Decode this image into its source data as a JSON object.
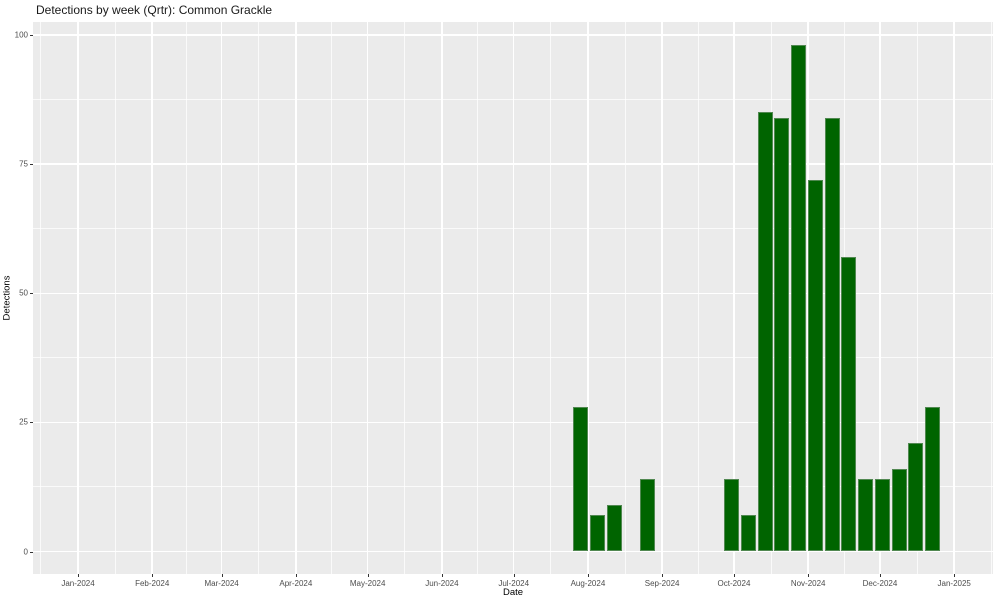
{
  "chart_data": {
    "type": "bar",
    "title": "Detections by week (Qrtr): Common Grackle",
    "xlabel": "Date",
    "ylabel": "Detections",
    "series_name": "Weekly detections",
    "x": [
      "2024-07-29",
      "2024-08-05",
      "2024-08-12",
      "2024-08-26",
      "2024-09-30",
      "2024-10-07",
      "2024-10-14",
      "2024-10-21",
      "2024-10-28",
      "2024-11-04",
      "2024-11-11",
      "2024-11-18",
      "2024-11-25",
      "2024-12-02",
      "2024-12-09",
      "2024-12-16",
      "2024-12-23"
    ],
    "values": [
      28,
      7,
      9,
      14,
      14,
      7,
      85,
      84,
      98,
      72,
      84,
      57,
      14,
      14,
      16,
      21,
      28
    ],
    "x_ticks": [
      {
        "date": "2024-01-01",
        "label": "Jan-2024"
      },
      {
        "date": "2024-02-01",
        "label": "Feb-2024"
      },
      {
        "date": "2024-03-01",
        "label": "Mar-2024"
      },
      {
        "date": "2024-04-01",
        "label": "Apr-2024"
      },
      {
        "date": "2024-05-01",
        "label": "May-2024"
      },
      {
        "date": "2024-06-01",
        "label": "Jun-2024"
      },
      {
        "date": "2024-07-01",
        "label": "Jul-2024"
      },
      {
        "date": "2024-08-01",
        "label": "Aug-2024"
      },
      {
        "date": "2024-09-01",
        "label": "Sep-2024"
      },
      {
        "date": "2024-10-01",
        "label": "Oct-2024"
      },
      {
        "date": "2024-11-01",
        "label": "Nov-2024"
      },
      {
        "date": "2024-12-01",
        "label": "Dec-2024"
      },
      {
        "date": "2025-01-01",
        "label": "Jan-2025"
      }
    ],
    "y_ticks": [
      0,
      25,
      50,
      75,
      100
    ],
    "y_minor_step": 12.5,
    "xlim": [
      "2023-12-13",
      "2025-01-18"
    ],
    "ylim": [
      0,
      100
    ],
    "grid": "major+minor",
    "legend_position": "none",
    "colors": {
      "bar_fill": "#006400",
      "bar_edge": "#7d9b7d",
      "panel_background": "#ebebeb",
      "gridline": "#ffffff",
      "tick_label": "#4d4d4d",
      "axis_title": "#000000",
      "title": "#1a1a1a"
    }
  }
}
